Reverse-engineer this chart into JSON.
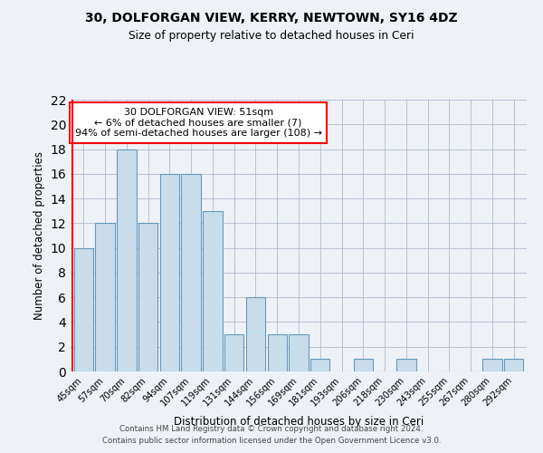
{
  "title1": "30, DOLFORGAN VIEW, KERRY, NEWTOWN, SY16 4DZ",
  "title2": "Size of property relative to detached houses in Ceri",
  "xlabel": "Distribution of detached houses by size in Ceri",
  "ylabel": "Number of detached properties",
  "categories": [
    "45sqm",
    "57sqm",
    "70sqm",
    "82sqm",
    "94sqm",
    "107sqm",
    "119sqm",
    "131sqm",
    "144sqm",
    "156sqm",
    "169sqm",
    "181sqm",
    "193sqm",
    "206sqm",
    "218sqm",
    "230sqm",
    "243sqm",
    "255sqm",
    "267sqm",
    "280sqm",
    "292sqm"
  ],
  "values": [
    10,
    12,
    18,
    12,
    16,
    16,
    13,
    3,
    6,
    3,
    3,
    1,
    0,
    1,
    0,
    1,
    0,
    0,
    0,
    1,
    1
  ],
  "bar_color": "#c9dcea",
  "bar_edge_color": "#6699bb",
  "annotation_text": "30 DOLFORGAN VIEW: 51sqm\n← 6% of detached houses are smaller (7)\n94% of semi-detached houses are larger (108) →",
  "ylim": [
    0,
    22
  ],
  "yticks": [
    0,
    2,
    4,
    6,
    8,
    10,
    12,
    14,
    16,
    18,
    20,
    22
  ],
  "footnote1": "Contains HM Land Registry data © Crown copyright and database right 2024.",
  "footnote2": "Contains public sector information licensed under the Open Government Licence v3.0.",
  "bg_color": "#eef2f7",
  "plot_bg_color": "#eef2f7",
  "grid_color": "#b0b8cc"
}
